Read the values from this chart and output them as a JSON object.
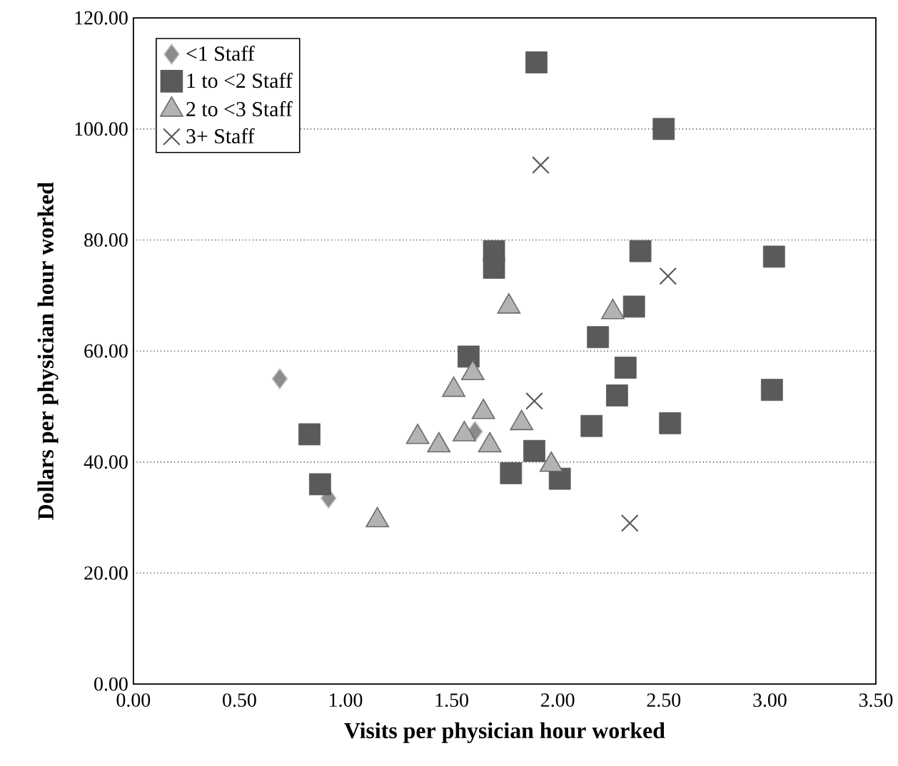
{
  "chart_data": {
    "type": "scatter",
    "xlabel": "Visits per physician hour worked",
    "ylabel": "Dollars per physician hour worked",
    "xlim": [
      0,
      3.5
    ],
    "ylim": [
      0,
      120
    ],
    "xticks": [
      {
        "value": 0,
        "label": "0.00"
      },
      {
        "value": 0.5,
        "label": "0.50"
      },
      {
        "value": 1,
        "label": "1.00"
      },
      {
        "value": 1.5,
        "label": "1.50"
      },
      {
        "value": 2,
        "label": "2.00"
      },
      {
        "value": 2.5,
        "label": "2.50"
      },
      {
        "value": 3,
        "label": "3.00"
      },
      {
        "value": 3.5,
        "label": "3.50"
      }
    ],
    "yticks": [
      {
        "value": 0,
        "label": "0.00"
      },
      {
        "value": 20,
        "label": "20.00"
      },
      {
        "value": 40,
        "label": "40.00"
      },
      {
        "value": 60,
        "label": "60.00"
      },
      {
        "value": 80,
        "label": "80.00"
      },
      {
        "value": 100,
        "label": "100.00"
      },
      {
        "value": 120,
        "label": "120.00"
      }
    ],
    "grid": "y",
    "legend": "top left",
    "series": [
      {
        "name": "<1 Staff",
        "color": "#8c8c8c",
        "marker": "diamond",
        "x": [
          0.69,
          0.92,
          1.61
        ],
        "values": [
          55,
          33.5,
          45.5
        ]
      },
      {
        "name": "1 to <2 Staff",
        "color": "#5a5a5a",
        "marker": "square",
        "x": [
          1.9,
          2.5,
          1.7,
          1.7,
          2.39,
          3.02,
          2.36,
          2.19,
          1.58,
          2.32,
          2.28,
          3.01,
          2.16,
          2.53,
          0.83,
          1.89,
          1.78,
          2.01,
          0.88
        ],
        "values": [
          112,
          100,
          78,
          75,
          78,
          77,
          68,
          62.5,
          59,
          57,
          52,
          53,
          46.5,
          47,
          45,
          42,
          38,
          37,
          36
        ]
      },
      {
        "name": "2 to <3 Staff",
        "color": "#b3b3b3",
        "marker": "triangle",
        "x": [
          1.77,
          2.26,
          1.6,
          1.51,
          1.65,
          1.83,
          1.34,
          1.56,
          1.44,
          1.68,
          1.97,
          1.15
        ],
        "values": [
          68,
          67,
          56,
          53,
          49,
          47,
          44.5,
          45,
          43,
          43,
          39.5,
          29.5
        ]
      },
      {
        "name": "3+ Staff",
        "color": "#595959",
        "marker": "cross",
        "x": [
          1.92,
          2.52,
          1.89,
          2.34
        ],
        "values": [
          93.5,
          73.5,
          51,
          29
        ]
      }
    ]
  }
}
